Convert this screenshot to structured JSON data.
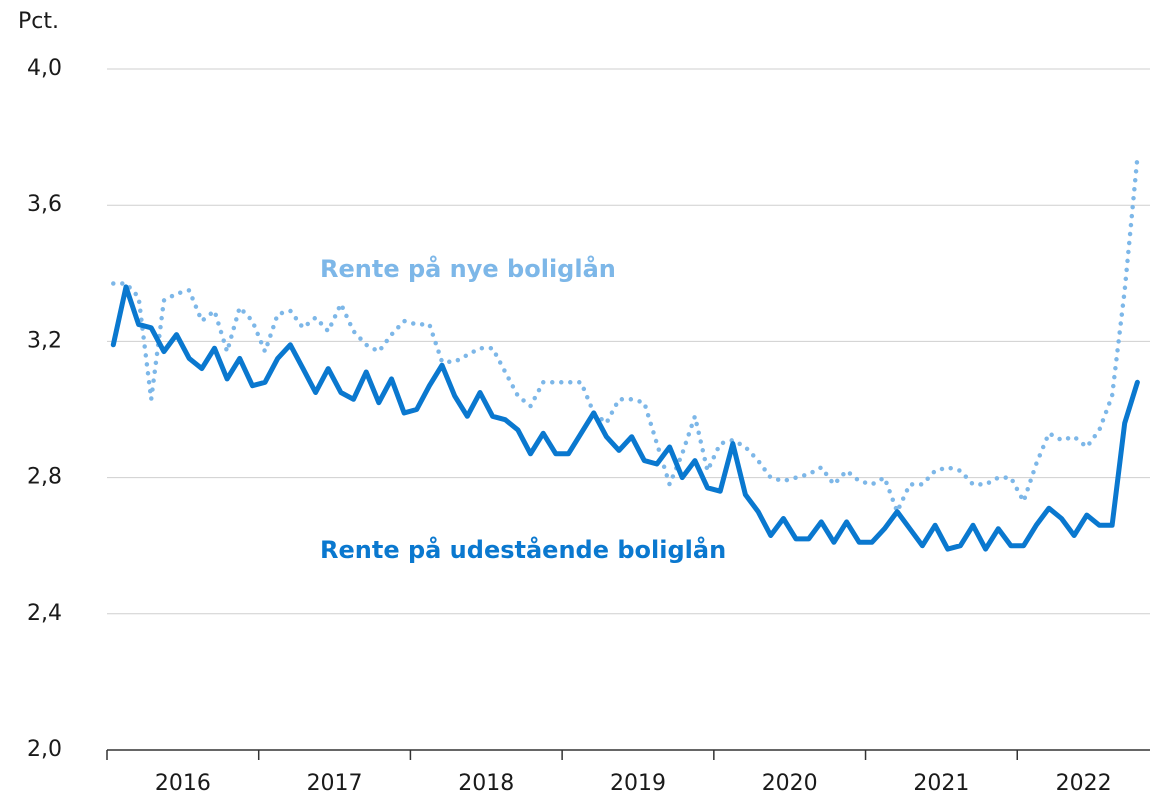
{
  "chart_data": {
    "type": "line",
    "y_label": "Pct.",
    "annotations": [
      "Rente på nye boliglån",
      "Rente på udestående boliglån"
    ],
    "x_labels": [
      "2016",
      "2017",
      "2018",
      "2019",
      "2020",
      "2021",
      "2022"
    ],
    "ylim": [
      2.0,
      4.0
    ],
    "yticks": [
      {
        "value": 2.0,
        "label": "2,0"
      },
      {
        "value": 2.4,
        "label": "2,4"
      },
      {
        "value": 2.8,
        "label": "2,8"
      },
      {
        "value": 3.2,
        "label": "3,2"
      },
      {
        "value": 3.6,
        "label": "3,6"
      },
      {
        "value": 4.0,
        "label": "4,0"
      }
    ],
    "grid": true,
    "series": [
      {
        "name": "Rente på nye boliglån",
        "color": "#7db7e8",
        "style": "dotted",
        "values": [
          3.37,
          3.37,
          3.33,
          3.03,
          3.32,
          3.34,
          3.35,
          3.26,
          3.29,
          3.17,
          3.3,
          3.26,
          3.17,
          3.28,
          3.29,
          3.24,
          3.27,
          3.23,
          3.31,
          3.23,
          3.19,
          3.17,
          3.22,
          3.26,
          3.25,
          3.25,
          3.14,
          3.14,
          3.16,
          3.18,
          3.18,
          3.11,
          3.04,
          3.01,
          3.08,
          3.08,
          3.08,
          3.08,
          2.99,
          2.96,
          3.03,
          3.03,
          3.02,
          2.9,
          2.78,
          2.87,
          2.98,
          2.82,
          2.9,
          2.91,
          2.89,
          2.85,
          2.8,
          2.79,
          2.8,
          2.81,
          2.83,
          2.78,
          2.82,
          2.79,
          2.78,
          2.8,
          2.7,
          2.78,
          2.78,
          2.82,
          2.83,
          2.82,
          2.78,
          2.78,
          2.8,
          2.8,
          2.73,
          2.84,
          2.93,
          2.91,
          2.92,
          2.89,
          2.94,
          3.04,
          3.35,
          3.74
        ]
      },
      {
        "name": "Rente på udestående boliglån",
        "color": "#0a78cf",
        "style": "solid",
        "values": [
          3.19,
          3.36,
          3.25,
          3.24,
          3.17,
          3.22,
          3.15,
          3.12,
          3.18,
          3.09,
          3.15,
          3.07,
          3.08,
          3.15,
          3.19,
          3.12,
          3.05,
          3.12,
          3.05,
          3.03,
          3.11,
          3.02,
          3.09,
          2.99,
          3.0,
          3.07,
          3.13,
          3.04,
          2.98,
          3.05,
          2.98,
          2.97,
          2.94,
          2.87,
          2.93,
          2.87,
          2.87,
          2.93,
          2.99,
          2.92,
          2.88,
          2.92,
          2.85,
          2.84,
          2.89,
          2.8,
          2.85,
          2.77,
          2.76,
          2.9,
          2.75,
          2.7,
          2.63,
          2.68,
          2.62,
          2.62,
          2.67,
          2.61,
          2.67,
          2.61,
          2.61,
          2.65,
          2.7,
          2.65,
          2.6,
          2.66,
          2.59,
          2.6,
          2.66,
          2.59,
          2.65,
          2.6,
          2.6,
          2.66,
          2.71,
          2.68,
          2.63,
          2.69,
          2.66,
          2.66,
          2.96,
          3.08
        ]
      }
    ]
  }
}
